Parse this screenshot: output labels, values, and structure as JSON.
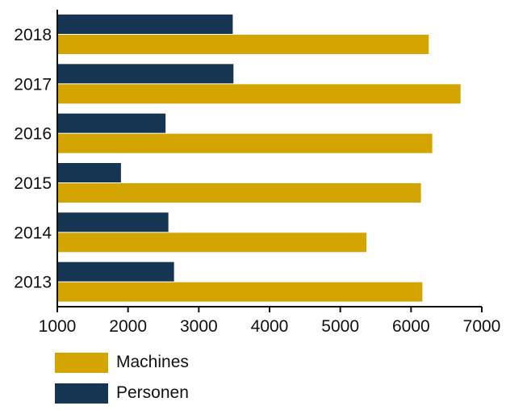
{
  "chart_data": {
    "type": "bar",
    "orientation": "horizontal",
    "categories": [
      "2018",
      "2017",
      "2016",
      "2015",
      "2014",
      "2013"
    ],
    "series": [
      {
        "name": "Personen",
        "color": "#163552",
        "values": [
          3480,
          3490,
          2530,
          1900,
          2570,
          2650
        ]
      },
      {
        "name": "Machines",
        "color": "#d4a500",
        "values": [
          6250,
          6700,
          6300,
          6140,
          5370,
          6160
        ]
      }
    ],
    "xticks": [
      "1000",
      "2000",
      "3000",
      "4000",
      "5000",
      "6000",
      "7000"
    ],
    "xlim": [
      1000,
      7000
    ],
    "title": "",
    "xlabel": "",
    "ylabel": "",
    "grid": false,
    "legend_position": "bottom-left"
  },
  "legend": [
    {
      "label": "Machines",
      "color": "#d4a500"
    },
    {
      "label": "Personen",
      "color": "#163552"
    }
  ]
}
